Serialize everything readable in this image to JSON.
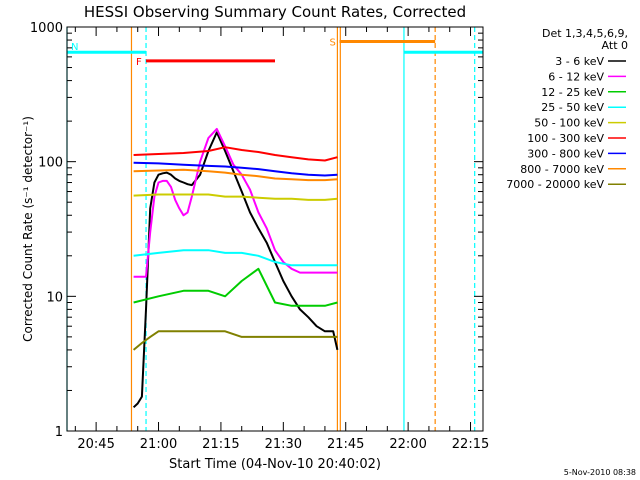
{
  "chart_data": {
    "type": "line",
    "title": "HESSI Observing Summary Count Rates, Corrected",
    "xlabel": "Start Time (04-Nov-10 20:40:02)",
    "ylabel": "Corrected Count Rate (s⁻¹ detector⁻¹)",
    "yscale": "log",
    "xlim": [
      -2,
      98
    ],
    "ylim": [
      1,
      1000
    ],
    "xticks": [
      {
        "min": 5,
        "label": "20:45"
      },
      {
        "min": 20,
        "label": "21:00"
      },
      {
        "min": 35,
        "label": "21:15"
      },
      {
        "min": 50,
        "label": "21:30"
      },
      {
        "min": 65,
        "label": "21:45"
      },
      {
        "min": 80,
        "label": "22:00"
      },
      {
        "min": 95,
        "label": "22:15"
      }
    ],
    "yticks": [
      {
        "value": 1,
        "label": "1"
      },
      {
        "value": 10,
        "label": "10"
      },
      {
        "value": 100,
        "label": "100"
      },
      {
        "value": 1000,
        "label": "1000"
      }
    ],
    "legend": {
      "position": "right",
      "header": [
        "Det 1,3,4,5,6,9,",
        "Att 0"
      ]
    },
    "series": [
      {
        "name": "3 - 6 keV",
        "color": "#000000",
        "x": [
          14,
          15,
          16,
          17,
          18,
          19,
          20,
          21,
          22,
          23,
          24,
          25,
          26,
          27,
          28,
          30,
          32,
          34,
          36,
          38,
          40,
          42,
          44,
          46,
          48,
          50,
          52,
          54,
          56,
          58,
          60,
          62,
          63
        ],
        "y": [
          1.5,
          1.6,
          1.8,
          8,
          45,
          70,
          80,
          82,
          83,
          80,
          75,
          72,
          70,
          68,
          67,
          80,
          120,
          165,
          120,
          85,
          60,
          42,
          32,
          25,
          18,
          13,
          10,
          8,
          7,
          6,
          5.5,
          5.5,
          4
        ]
      },
      {
        "name": "6 - 12 keV",
        "color": "#ff00ff",
        "x": [
          14,
          15,
          16,
          17,
          18,
          19,
          20,
          21,
          22,
          23,
          24,
          25,
          26,
          27,
          28,
          30,
          32,
          34,
          36,
          38,
          40,
          42,
          44,
          46,
          48,
          50,
          52,
          54,
          56,
          58,
          60,
          62,
          63
        ],
        "y": [
          14,
          14,
          14,
          14,
          30,
          55,
          70,
          72,
          72,
          65,
          52,
          45,
          40,
          42,
          55,
          100,
          150,
          175,
          130,
          95,
          80,
          62,
          42,
          32,
          22,
          18,
          16,
          15,
          15,
          15,
          15,
          15,
          15
        ]
      },
      {
        "name": "12 - 25 keV",
        "color": "#00cc00",
        "x": [
          14,
          20,
          26,
          32,
          36,
          40,
          44,
          48,
          52,
          56,
          60,
          63
        ],
        "y": [
          9,
          10,
          11,
          11,
          10,
          13,
          16,
          9,
          8.5,
          8.5,
          8.5,
          9
        ]
      },
      {
        "name": "25 - 50 keV",
        "color": "#00ffff",
        "x": [
          14,
          20,
          26,
          32,
          36,
          40,
          44,
          48,
          52,
          56,
          60,
          63
        ],
        "y": [
          20,
          21,
          22,
          22,
          21,
          21,
          20,
          18,
          17,
          17,
          17,
          17
        ]
      },
      {
        "name": "50 - 100 keV",
        "color": "#cccc00",
        "x": [
          14,
          20,
          26,
          32,
          36,
          40,
          44,
          48,
          52,
          56,
          60,
          63
        ],
        "y": [
          56,
          57,
          57,
          57,
          55,
          55,
          54,
          53,
          53,
          52,
          52,
          53
        ]
      },
      {
        "name": "100 - 300 keV",
        "color": "#ff0000",
        "x": [
          14,
          20,
          26,
          32,
          36,
          40,
          44,
          48,
          52,
          56,
          60,
          63
        ],
        "y": [
          112,
          114,
          116,
          120,
          128,
          122,
          118,
          112,
          108,
          104,
          102,
          108
        ]
      },
      {
        "name": "300 - 800 keV",
        "color": "#0000ff",
        "x": [
          14,
          20,
          26,
          32,
          36,
          40,
          44,
          48,
          52,
          56,
          60,
          63
        ],
        "y": [
          98,
          97,
          95,
          93,
          92,
          90,
          88,
          85,
          82,
          80,
          79,
          80
        ]
      },
      {
        "name": "800 - 7000 keV",
        "color": "#ff8800",
        "x": [
          14,
          20,
          26,
          32,
          36,
          40,
          44,
          48,
          52,
          56,
          60,
          63
        ],
        "y": [
          85,
          86,
          87,
          85,
          83,
          80,
          78,
          75,
          74,
          73,
          73,
          74
        ]
      },
      {
        "name": "7000 - 20000 keV",
        "color": "#808000",
        "x": [
          14,
          16,
          18,
          20,
          24,
          28,
          32,
          36,
          40,
          44,
          48,
          52,
          56,
          60,
          63
        ],
        "y": [
          4,
          4.5,
          5,
          5.5,
          5.5,
          5.5,
          5.5,
          5.5,
          5,
          5,
          5,
          5,
          5,
          5,
          5
        ]
      }
    ],
    "annotations": [
      {
        "label": "N",
        "color": "#00ffff",
        "x_start": -2,
        "x_end": 17,
        "value": 650
      },
      {
        "label": "F",
        "color": "#ff0000",
        "x_start": 17,
        "x_end": 48,
        "value": 560
      },
      {
        "label": "S",
        "color": "#ff8800",
        "x_start": 63.5,
        "x_end": 86.5,
        "value": 780
      },
      {
        "color": "#00ffff",
        "x_start": 79,
        "x_end": 98,
        "value": 650
      }
    ],
    "markers": [
      {
        "color": "#00ffff",
        "style": "solid",
        "x": -2
      },
      {
        "color": "#00ffff",
        "style": "dashed",
        "x": 17
      },
      {
        "color": "#ff8800",
        "style": "solid",
        "x": 13.5
      },
      {
        "color": "#ff8800",
        "style": "solid",
        "x": 63
      },
      {
        "color": "#ff8800",
        "style": "solid",
        "x": 63.7
      },
      {
        "color": "#00ffff",
        "style": "solid",
        "x": 79
      },
      {
        "color": "#ff8800",
        "style": "dashed",
        "x": 86.5
      },
      {
        "color": "#00ffff",
        "style": "dashed",
        "x": 96
      }
    ]
  },
  "footer": {
    "timestamp": "5-Nov-2010 08:38"
  }
}
